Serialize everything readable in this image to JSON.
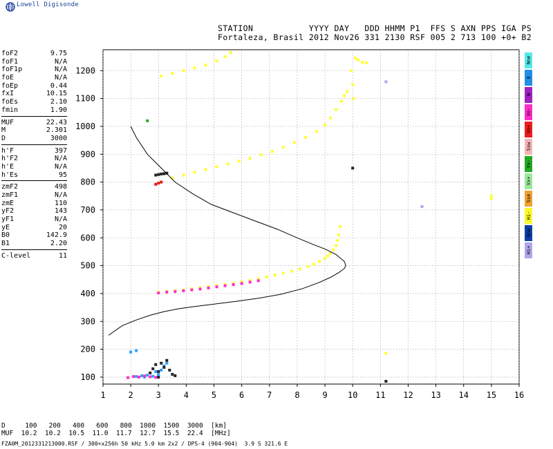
{
  "app": {
    "brand": "Lowell Digisonde"
  },
  "header": {
    "line1": "STATION           YYYY DAY   DDD HHMM P1  FFS S AXN PPS IGA PS",
    "line2": "Fortaleza, Brasil 2012 Nov26 331 2130 RSF 005 2 713 100 +0+ B2"
  },
  "params": {
    "group1": [
      {
        "name": "foF2",
        "value": "9.75"
      },
      {
        "name": "foF1",
        "value": "N/A"
      },
      {
        "name": "foF1p",
        "value": "N/A"
      },
      {
        "name": "foE",
        "value": "N/A"
      },
      {
        "name": "foEp",
        "value": "0.44"
      },
      {
        "name": "fxI",
        "value": "10.15"
      },
      {
        "name": "foEs",
        "value": "2.10"
      },
      {
        "name": "fmin",
        "value": "1.90"
      }
    ],
    "group2": [
      {
        "name": "MUF",
        "value": "22.43"
      },
      {
        "name": "M",
        "value": "2.301"
      },
      {
        "name": "D",
        "value": "3000"
      }
    ],
    "group3": [
      {
        "name": "h'F",
        "value": "397"
      },
      {
        "name": "h'F2",
        "value": "N/A"
      },
      {
        "name": "h'E",
        "value": "N/A"
      },
      {
        "name": "h'Es",
        "value": "95"
      }
    ],
    "group4": [
      {
        "name": "zmF2",
        "value": "498"
      },
      {
        "name": "zmF1",
        "value": "N/A"
      },
      {
        "name": "zmE",
        "value": "110"
      },
      {
        "name": "yF2",
        "value": "143"
      },
      {
        "name": "yF1",
        "value": "N/A"
      },
      {
        "name": "yE",
        "value": "20"
      },
      {
        "name": "B0",
        "value": "142.9"
      },
      {
        "name": "B1",
        "value": "2.20"
      }
    ],
    "group5": [
      {
        "name": "C-level",
        "value": "11"
      }
    ]
  },
  "legend": [
    {
      "label": "Nne",
      "color": "#55e8e8"
    },
    {
      "label": "E",
      "color": "#1f8fe8"
    },
    {
      "label": "W",
      "color": "#a020c0"
    },
    {
      "label": "Vo-",
      "color": "#ff2cc8"
    },
    {
      "label": "Vo+",
      "color": "#ee1c1c"
    },
    {
      "label": "Ssw",
      "color": "#f6b4b4"
    },
    {
      "label": "Vx-",
      "color": "#22aa22"
    },
    {
      "label": "Vx+",
      "color": "#9be89b"
    },
    {
      "label": "Sse",
      "color": "#f0a030"
    },
    {
      "label": "Hi-",
      "color": "#fafa2a"
    },
    {
      "label": "Nnw",
      "color": "#0d3fa8"
    },
    {
      "label": "Hi+",
      "color": "#b0a6ec"
    }
  ],
  "muf_table": {
    "line1": "D     100   200   400   600   800  1000  1500  3000  [km]",
    "line2": "MUF  10.2  10.2  10.5  11.0  11.7  12.7  15.5  22.4  [MHz]"
  },
  "footer": "FZA0M_2012331213000.RSF / 300+x256h 50 kHz 5.0 km 2x2 / DPS-4 (904-904)  3.9 S 321.6 E",
  "chart_data": {
    "type": "scatter",
    "xlim": [
      1,
      16
    ],
    "ylim": [
      75,
      1275
    ],
    "x_ticks": [
      1,
      2,
      3,
      4,
      5,
      6,
      7,
      8,
      9,
      10,
      11,
      12,
      13,
      14,
      15,
      16
    ],
    "y_ticks": [
      100,
      200,
      300,
      400,
      500,
      600,
      700,
      800,
      900,
      1000,
      1100,
      1200
    ],
    "grid": true,
    "profile_line": {
      "x": [
        1.2,
        1.7,
        2.2,
        2.7,
        3.2,
        3.7,
        4.2,
        5.0,
        5.8,
        6.6,
        7.4,
        8.2,
        8.8,
        9.2,
        9.5,
        9.7,
        9.75,
        9.7,
        9.4,
        9.0,
        8.6,
        8.0,
        7.3,
        6.5,
        5.7,
        4.9,
        4.2,
        3.6,
        3.1,
        2.6,
        2.2,
        2.0
      ],
      "y": [
        250,
        285,
        305,
        322,
        335,
        345,
        352,
        362,
        372,
        383,
        397,
        418,
        440,
        458,
        475,
        490,
        500,
        515,
        540,
        560,
        575,
        600,
        630,
        660,
        690,
        720,
        760,
        800,
        850,
        900,
        960,
        1000
      ]
    },
    "traces": [
      {
        "color": "#ffff33",
        "x": [
          3.0,
          3.3,
          3.6,
          3.9,
          4.2,
          4.5,
          4.8,
          5.1,
          5.4,
          5.7,
          6.0,
          6.3,
          6.6,
          6.9,
          7.2,
          7.5,
          7.8,
          8.1,
          8.4,
          8.6,
          8.8,
          9.0,
          9.1,
          9.2,
          9.3,
          9.4,
          9.45,
          9.5,
          9.55
        ],
        "y": [
          405,
          408,
          410,
          413,
          417,
          421,
          425,
          429,
          433,
          437,
          442,
          447,
          453,
          459,
          466,
          473,
          480,
          488,
          497,
          505,
          515,
          527,
          535,
          545,
          557,
          572,
          590,
          610,
          640
        ]
      },
      {
        "color": "#ff2cc8",
        "x": [
          3.0,
          3.3,
          3.6,
          3.9,
          4.2,
          4.5,
          4.8,
          5.1,
          5.4,
          5.7,
          6.0,
          6.3,
          6.6
        ],
        "y": [
          402,
          405,
          407,
          410,
          413,
          416,
          420,
          424,
          428,
          432,
          436,
          441,
          446
        ]
      },
      {
        "color": "#ffff33",
        "x": [
          3.1,
          3.5,
          3.9,
          4.3,
          4.7,
          5.1,
          5.5,
          5.9,
          6.3,
          6.7,
          7.1,
          7.5,
          7.9,
          8.3,
          8.7,
          9.0,
          9.2,
          9.4,
          9.6,
          9.7,
          9.8
        ],
        "y": [
          800,
          815,
          825,
          835,
          845,
          855,
          865,
          875,
          885,
          898,
          910,
          925,
          942,
          960,
          982,
          1005,
          1030,
          1060,
          1090,
          1110,
          1125
        ]
      },
      {
        "color": "#ffff33",
        "x": [
          3.1,
          3.5,
          3.9,
          4.3,
          4.7,
          5.1,
          5.4,
          5.6
        ],
        "y": [
          1180,
          1190,
          1200,
          1210,
          1220,
          1235,
          1250,
          1265
        ]
      },
      {
        "color": "#ffff33",
        "x": [
          10.1,
          10.2,
          10.35,
          10.5
        ],
        "y": [
          1245,
          1238,
          1230,
          1228
        ]
      },
      {
        "color": "#ffff33",
        "x": [
          9.95,
          10.0,
          10.05
        ],
        "y": [
          1200,
          1150,
          1100
        ]
      },
      {
        "color": "#2aa0ff",
        "x": [
          2.2,
          2.4,
          2.6,
          2.8,
          3.0,
          3.1,
          3.2,
          2.5,
          2.9,
          3.3
        ],
        "y": [
          102,
          105,
          107,
          103,
          110,
          125,
          140,
          100,
          120,
          150
        ]
      },
      {
        "color": "#ff2cc8",
        "x": [
          1.9,
          2.1,
          2.3,
          2.5,
          2.7,
          2.9
        ],
        "y": [
          98,
          102,
          100,
          104,
          101,
          99
        ]
      },
      {
        "color": "#222222",
        "x": [
          2.8,
          2.9,
          3.0,
          3.1,
          3.2,
          3.3,
          3.4,
          3.5,
          3.6,
          2.7,
          3.0
        ],
        "y": [
          130,
          145,
          120,
          150,
          135,
          160,
          125,
          110,
          105,
          115,
          100
        ]
      },
      {
        "color": "#222222",
        "x": [
          2.9,
          3.0,
          3.1,
          3.2,
          3.3
        ],
        "y": [
          825,
          827,
          829,
          830,
          832
        ]
      },
      {
        "color": "#dd1c1c",
        "x": [
          2.9,
          3.0,
          3.1
        ],
        "y": [
          792,
          796,
          800
        ]
      },
      {
        "color": "#22aa22",
        "x": [
          2.6
        ],
        "y": [
          1020
        ]
      },
      {
        "color": "#222222",
        "x": [
          10.0
        ],
        "y": [
          850
        ]
      },
      {
        "color": "#222222",
        "x": [
          11.2
        ],
        "y": [
          85
        ]
      },
      {
        "color": "#ffff33",
        "x": [
          11.2
        ],
        "y": [
          185
        ]
      },
      {
        "color": "#ffff33",
        "x": [
          15.0,
          15.0
        ],
        "y": [
          740,
          750
        ]
      },
      {
        "color": "#b0a6ec",
        "x": [
          12.5
        ],
        "y": [
          712
        ]
      },
      {
        "color": "#b0a6ec",
        "x": [
          11.2
        ],
        "y": [
          1160
        ]
      },
      {
        "color": "#2aa0ff",
        "x": [
          2.0,
          2.2
        ],
        "y": [
          190,
          195
        ]
      }
    ]
  }
}
